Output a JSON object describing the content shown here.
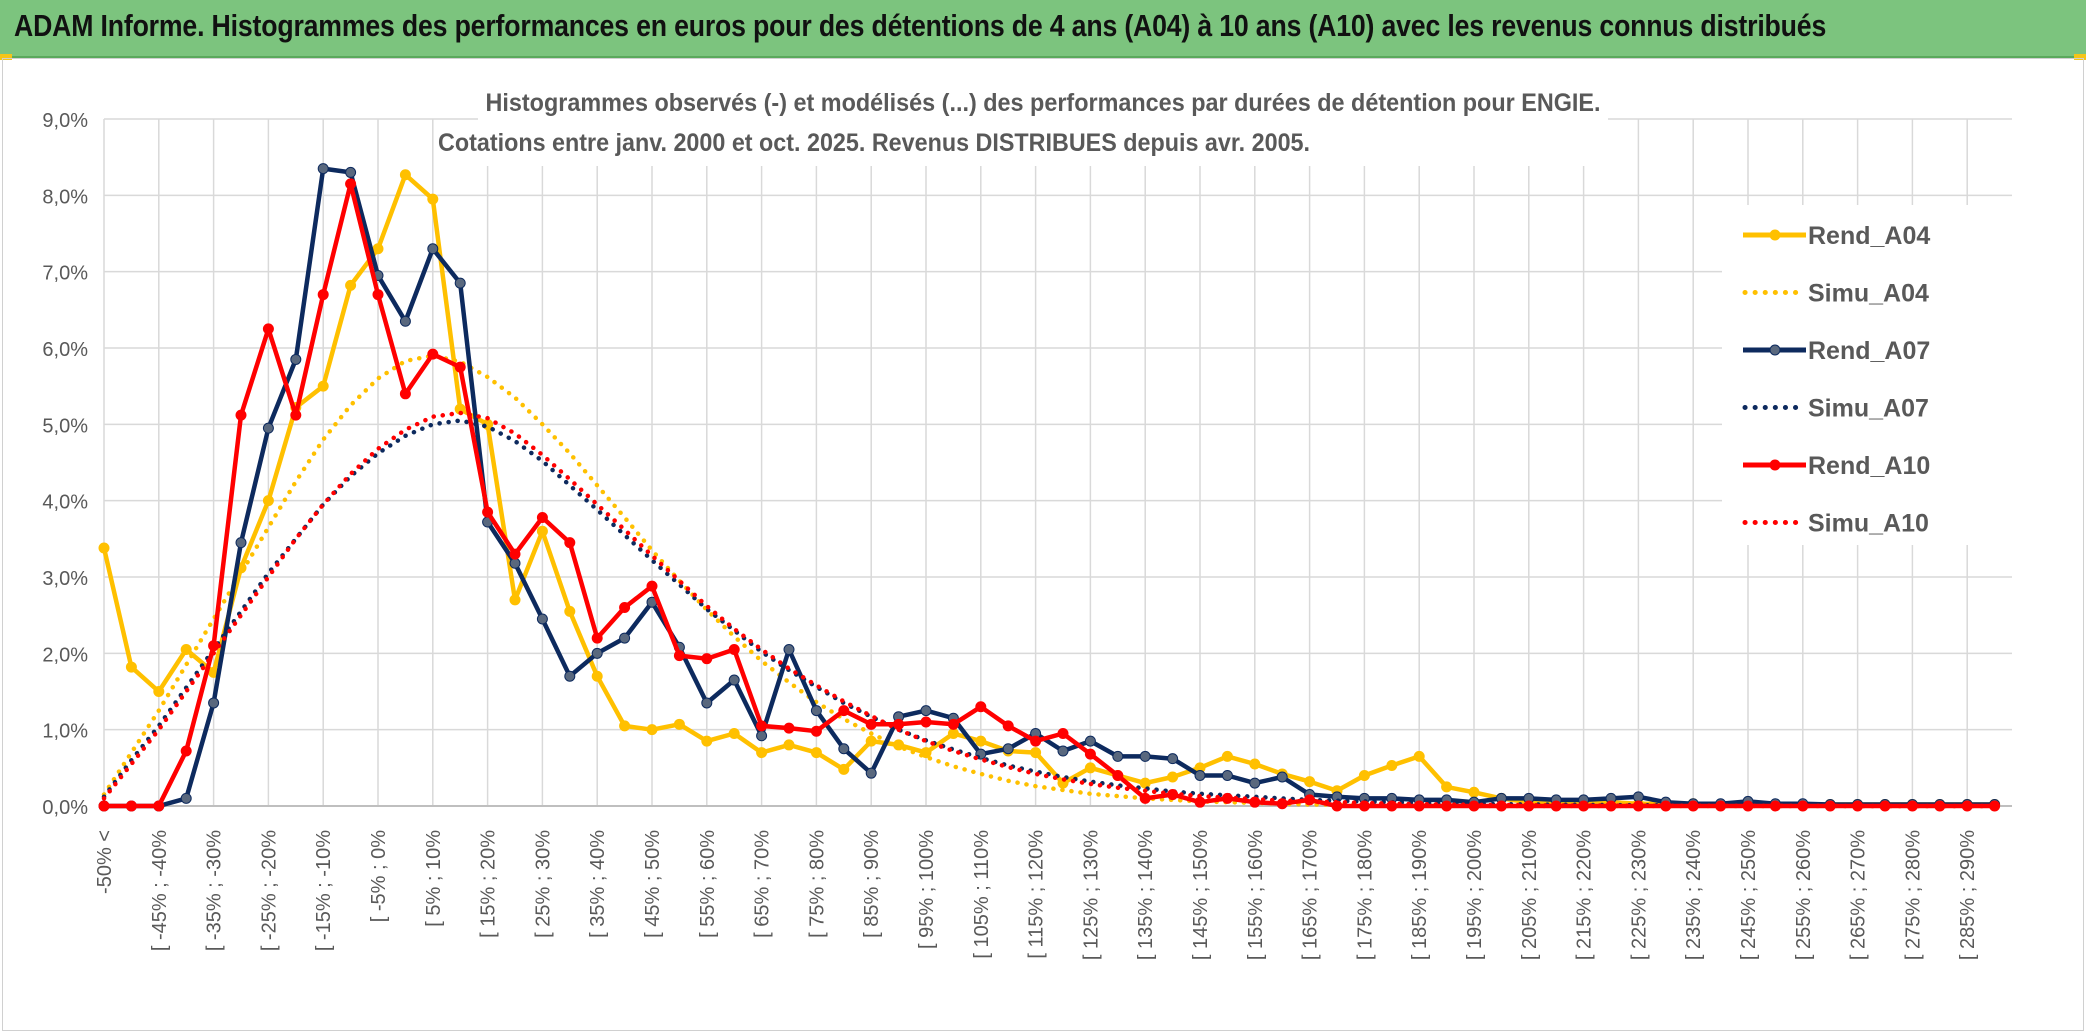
{
  "banner": {
    "title": "ADAM Informe. Histogrammes des performances en euros pour des détentions de 4 ans (A04) à 10 ans (A10) avec les revenus connus distribués"
  },
  "colors": {
    "banner_bg": "#7cc47e",
    "a04": "#FFC000",
    "a07": "#0D2A5E",
    "a07_marker": "#59687E",
    "a10": "#FF0000",
    "grid": "#D9D9D9",
    "axis_text": "#595959"
  },
  "chart_data": {
    "type": "line",
    "title_line1": "Histogrammes observés (-) et modélisés (...) des performances par durées de détention pour ENGIE.",
    "title_line2": "Cotations entre janv. 2000 et oct. 2025. Revenus DISTRIBUES depuis avr. 2005.",
    "ylim": [
      0,
      9
    ],
    "yticks": [
      "0,0%",
      "1,0%",
      "2,0%",
      "3,0%",
      "4,0%",
      "5,0%",
      "6,0%",
      "7,0%",
      "8,0%",
      "9,0%"
    ],
    "x_count": 70,
    "x_tick_labels": [
      "-50% <",
      "[ -45% ; -40%",
      "[ -35% ; -30%",
      "[ -25% ; -20%",
      "[ -15% ; -10%",
      "[ -5% ; 0%",
      "[ 5% ; 10%",
      "[ 15% ; 20%",
      "[ 25% ; 30%",
      "[ 35% ; 40%",
      "[ 45% ; 50%",
      "[ 55% ; 60%",
      "[ 65% ; 70%",
      "[ 75% ; 80%",
      "[ 85% ; 90%",
      "[ 95% ; 100%",
      "[ 105% ; 110%",
      "[ 115% ; 120%",
      "[ 125% ; 130%",
      "[ 135% ; 140%",
      "[ 145% ; 150%",
      "[ 155% ; 160%",
      "[ 165% ; 170%",
      "[ 175% ; 180%",
      "[ 185% ; 190%",
      "[ 195% ; 200%",
      "[ 205% ; 210%",
      "[ 215% ; 220%",
      "[ 225% ; 230%",
      "[ 235% ; 240%",
      "[ 245% ; 250%",
      "[ 255% ; 260%",
      "[ 265% ; 270%",
      "[ 275% ; 280%",
      "[ 285% ; 290%"
    ],
    "legend_position": "right",
    "series": [
      {
        "name": "Rend_A04",
        "style": "solid",
        "color": "#FFC000",
        "values": [
          3.38,
          1.82,
          1.5,
          2.05,
          1.75,
          3.12,
          4.0,
          5.22,
          5.5,
          6.82,
          7.3,
          8.27,
          7.95,
          5.2,
          5.0,
          2.7,
          3.6,
          2.55,
          1.7,
          1.05,
          1.0,
          1.07,
          0.85,
          0.95,
          0.7,
          0.8,
          0.7,
          0.48,
          0.85,
          0.8,
          0.7,
          0.95,
          0.85,
          0.72,
          0.7,
          0.3,
          0.5,
          0.4,
          0.3,
          0.38,
          0.5,
          0.65,
          0.55,
          0.42,
          0.32,
          0.2,
          0.4,
          0.53,
          0.65,
          0.25,
          0.18,
          0.1,
          0.05,
          0.05,
          0.05,
          0.05,
          0.03,
          0.03,
          0.03,
          0.02,
          0.02,
          0.02,
          0.02,
          0.02,
          0.02,
          0.02,
          0.02,
          0.02,
          0.02,
          0.02
        ]
      },
      {
        "name": "Simu_A04",
        "style": "dotted",
        "color": "#FFC000",
        "values": [
          0.15,
          0.7,
          1.25,
          1.85,
          2.45,
          3.05,
          3.65,
          4.25,
          4.8,
          5.25,
          5.6,
          5.83,
          5.9,
          5.82,
          5.62,
          5.35,
          5.0,
          4.62,
          4.2,
          3.78,
          3.35,
          2.95,
          2.57,
          2.22,
          1.9,
          1.62,
          1.36,
          1.14,
          0.95,
          0.78,
          0.64,
          0.52,
          0.42,
          0.33,
          0.26,
          0.21,
          0.16,
          0.13,
          0.1,
          0.08,
          0.06,
          0.05,
          0.04,
          0.03,
          0.02,
          0.02,
          0.01,
          0.01,
          0.01,
          0.01,
          0,
          0,
          0,
          0,
          0,
          0,
          0,
          0,
          0,
          0,
          0,
          0,
          0,
          0,
          0,
          0,
          0,
          0,
          0,
          0
        ]
      },
      {
        "name": "Rend_A07",
        "style": "solid",
        "color": "#0D2A5E",
        "values": [
          0,
          0,
          0,
          0.1,
          1.35,
          3.45,
          4.95,
          5.85,
          8.35,
          8.3,
          6.95,
          6.35,
          7.3,
          6.85,
          3.72,
          3.18,
          2.45,
          1.7,
          2.0,
          2.2,
          2.67,
          2.08,
          1.35,
          1.65,
          0.92,
          2.05,
          1.25,
          0.75,
          0.43,
          1.17,
          1.25,
          1.15,
          0.68,
          0.75,
          0.95,
          0.72,
          0.85,
          0.65,
          0.65,
          0.62,
          0.4,
          0.4,
          0.3,
          0.38,
          0.15,
          0.12,
          0.1,
          0.1,
          0.08,
          0.08,
          0.05,
          0.1,
          0.1,
          0.08,
          0.08,
          0.1,
          0.12,
          0.05,
          0.03,
          0.03,
          0.06,
          0.03,
          0.03,
          0.02,
          0.02,
          0.02,
          0.02,
          0.02,
          0.02,
          0.02
        ]
      },
      {
        "name": "Simu_A07",
        "style": "dotted",
        "color": "#0D2A5E",
        "values": [
          0.12,
          0.6,
          1.05,
          1.55,
          2.05,
          2.55,
          3.05,
          3.5,
          3.95,
          4.32,
          4.62,
          4.85,
          5.0,
          5.05,
          4.97,
          4.78,
          4.52,
          4.2,
          3.88,
          3.55,
          3.22,
          2.9,
          2.58,
          2.3,
          2.02,
          1.78,
          1.56,
          1.35,
          1.17,
          1.0,
          0.86,
          0.74,
          0.63,
          0.53,
          0.45,
          0.38,
          0.32,
          0.27,
          0.23,
          0.19,
          0.16,
          0.14,
          0.12,
          0.1,
          0.08,
          0.07,
          0.06,
          0.05,
          0.04,
          0.035,
          0.03,
          0.025,
          0.02,
          0.018,
          0.015,
          0.012,
          0.01,
          0.01,
          0.008,
          0.007,
          0.006,
          0.005,
          0.004,
          0.004,
          0.003,
          0.003,
          0.002,
          0.002,
          0.002,
          0.002
        ]
      },
      {
        "name": "Rend_A10",
        "style": "solid",
        "color": "#FF0000",
        "values": [
          0,
          0,
          0,
          0.72,
          2.1,
          5.12,
          6.25,
          5.12,
          6.7,
          8.15,
          6.7,
          5.4,
          5.92,
          5.75,
          3.85,
          3.3,
          3.78,
          3.45,
          2.2,
          2.6,
          2.88,
          1.97,
          1.93,
          2.05,
          1.05,
          1.02,
          0.98,
          1.25,
          1.07,
          1.07,
          1.1,
          1.07,
          1.3,
          1.05,
          0.85,
          0.95,
          0.68,
          0.4,
          0.1,
          0.15,
          0.05,
          0.1,
          0.05,
          0.03,
          0.08,
          0,
          0,
          0,
          0,
          0,
          0,
          0,
          0,
          0,
          0,
          0,
          0,
          0,
          0,
          0,
          0,
          0,
          0,
          0,
          0,
          0,
          0,
          0,
          0,
          0
        ]
      },
      {
        "name": "Simu_A10",
        "style": "dotted",
        "color": "#FF0000",
        "values": [
          0.1,
          0.55,
          1.0,
          1.5,
          2.0,
          2.5,
          3.0,
          3.5,
          3.95,
          4.35,
          4.68,
          4.93,
          5.1,
          5.15,
          5.08,
          4.88,
          4.6,
          4.28,
          3.95,
          3.62,
          3.28,
          2.95,
          2.62,
          2.32,
          2.05,
          1.8,
          1.58,
          1.37,
          1.18,
          1.0,
          0.85,
          0.72,
          0.61,
          0.51,
          0.42,
          0.35,
          0.29,
          0.24,
          0.2,
          0.16,
          0.13,
          0.11,
          0.09,
          0.07,
          0.06,
          0.05,
          0.04,
          0.03,
          0.025,
          0.02,
          0.016,
          0.013,
          0.01,
          0.008,
          0.006,
          0.005,
          0.004,
          0.003,
          0.002,
          0.002,
          0.001,
          0.001,
          0.001,
          0.001,
          0,
          0,
          0,
          0,
          0,
          0
        ]
      }
    ]
  }
}
